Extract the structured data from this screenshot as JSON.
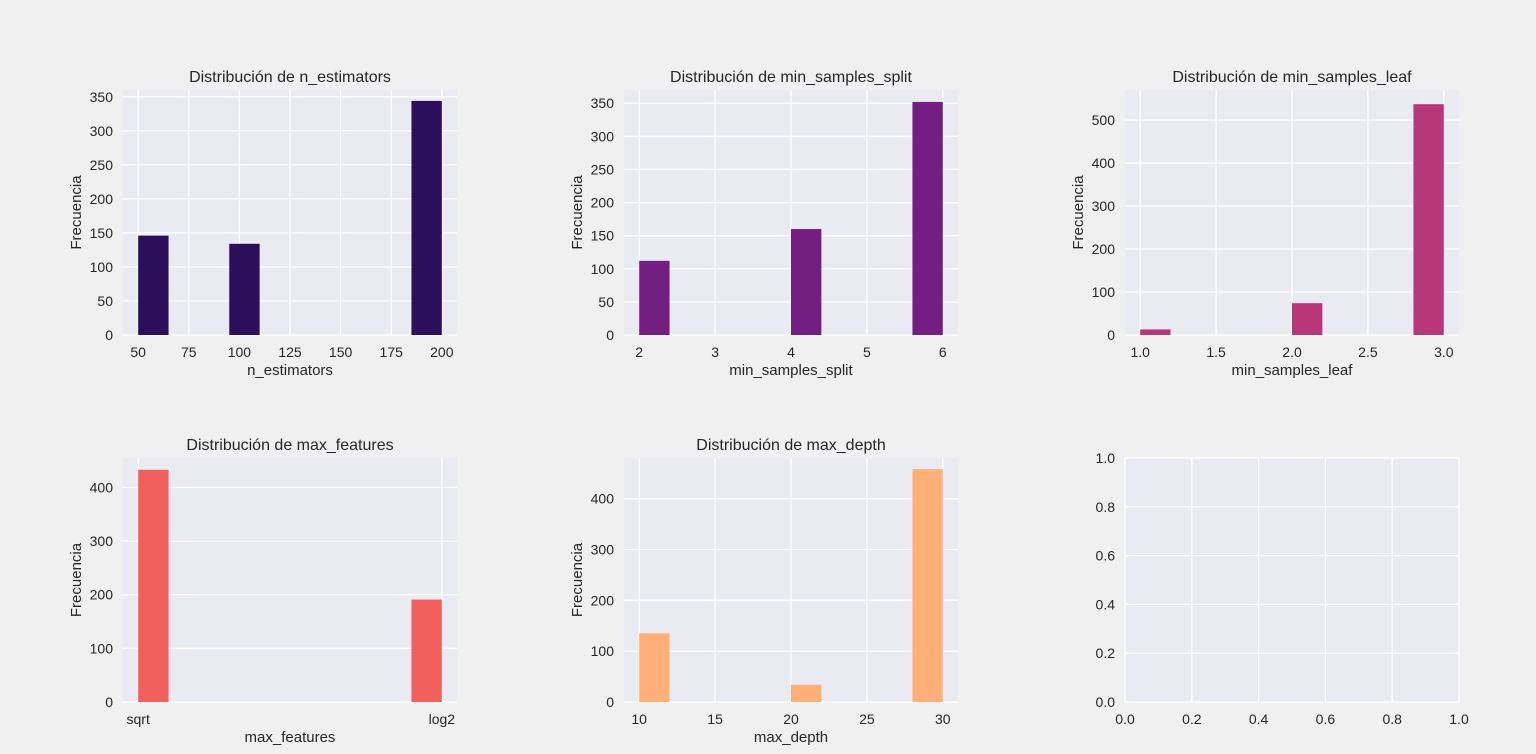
{
  "chart_data": [
    {
      "type": "bar",
      "title": "Distribución de n_estimators",
      "xlabel": "n_estimators",
      "ylabel": "Frecuencia",
      "color": "#2c0f5a",
      "xlim": [
        42.5,
        207.5
      ],
      "ylim": [
        0,
        360
      ],
      "xticks": [
        50,
        75,
        100,
        125,
        150,
        175,
        200
      ],
      "yticks": [
        0,
        50,
        100,
        150,
        200,
        250,
        300,
        350
      ],
      "bars": [
        {
          "x0": 50,
          "x1": 65,
          "value": 146
        },
        {
          "x0": 95,
          "x1": 110,
          "value": 134
        },
        {
          "x0": 185,
          "x1": 200,
          "value": 344
        }
      ]
    },
    {
      "type": "bar",
      "title": "Distribución de min_samples_split",
      "xlabel": "min_samples_split",
      "ylabel": "Frecuencia",
      "color": "#721f81",
      "xlim": [
        1.8,
        6.2
      ],
      "ylim": [
        0,
        370
      ],
      "xticks": [
        2,
        3,
        4,
        5,
        6
      ],
      "yticks": [
        0,
        50,
        100,
        150,
        200,
        250,
        300,
        350
      ],
      "bars": [
        {
          "x0": 2.0,
          "x1": 2.4,
          "value": 112
        },
        {
          "x0": 4.0,
          "x1": 4.4,
          "value": 160
        },
        {
          "x0": 5.6,
          "x1": 6.0,
          "value": 352
        }
      ]
    },
    {
      "type": "bar",
      "title": "Distribución de min_samples_leaf",
      "xlabel": "min_samples_leaf",
      "ylabel": "Frecuencia",
      "color": "#b73779",
      "xlim": [
        0.9,
        3.1
      ],
      "ylim": [
        0,
        570
      ],
      "xticks": [
        1.0,
        1.5,
        2.0,
        2.5,
        3.0
      ],
      "xtick_labels": [
        "1.0",
        "1.5",
        "2.0",
        "2.5",
        "3.0"
      ],
      "yticks": [
        0,
        100,
        200,
        300,
        400,
        500
      ],
      "bars": [
        {
          "x0": 1.0,
          "x1": 1.2,
          "value": 13
        },
        {
          "x0": 2.0,
          "x1": 2.2,
          "value": 74
        },
        {
          "x0": 2.8,
          "x1": 3.0,
          "value": 537
        }
      ]
    },
    {
      "type": "bar",
      "title": "Distribución de max_features",
      "xlabel": "max_features",
      "ylabel": "Frecuencia",
      "color": "#f1605d",
      "xlim": [
        -0.05,
        1.05
      ],
      "ylim": [
        0,
        455
      ],
      "xticks": [
        0,
        1
      ],
      "xtick_labels": [
        "sqrt",
        "log2"
      ],
      "yticks": [
        0,
        100,
        200,
        300,
        400
      ],
      "bars": [
        {
          "x0": 0.0,
          "x1": 0.1,
          "value": 433
        },
        {
          "x0": 0.9,
          "x1": 1.0,
          "value": 191
        }
      ]
    },
    {
      "type": "bar",
      "title": "Distribución de max_depth",
      "xlabel": "max_depth",
      "ylabel": "Frecuencia",
      "color": "#feb078",
      "xlim": [
        9.0,
        31.0
      ],
      "ylim": [
        0,
        480
      ],
      "xticks": [
        10,
        15,
        20,
        25,
        30
      ],
      "yticks": [
        0,
        100,
        200,
        300,
        400
      ],
      "bars": [
        {
          "x0": 10,
          "x1": 12,
          "value": 135
        },
        {
          "x0": 20,
          "x1": 22,
          "value": 34
        },
        {
          "x0": 28,
          "x1": 30,
          "value": 458
        }
      ]
    },
    {
      "type": "bar",
      "title": "",
      "xlabel": "",
      "ylabel": "",
      "color": "#eaeaf2",
      "xlim": [
        0,
        1
      ],
      "ylim": [
        0,
        1
      ],
      "xticks": [
        0,
        0.2,
        0.4,
        0.6,
        0.8,
        1.0
      ],
      "xtick_labels": [
        "0.0",
        "0.2",
        "0.4",
        "0.6",
        "0.8",
        "1.0"
      ],
      "yticks": [
        0,
        0.2,
        0.4,
        0.6,
        0.8,
        1.0
      ],
      "ytick_labels": [
        "0.0",
        "0.2",
        "0.4",
        "0.6",
        "0.8",
        "1.0"
      ],
      "bars": []
    }
  ]
}
